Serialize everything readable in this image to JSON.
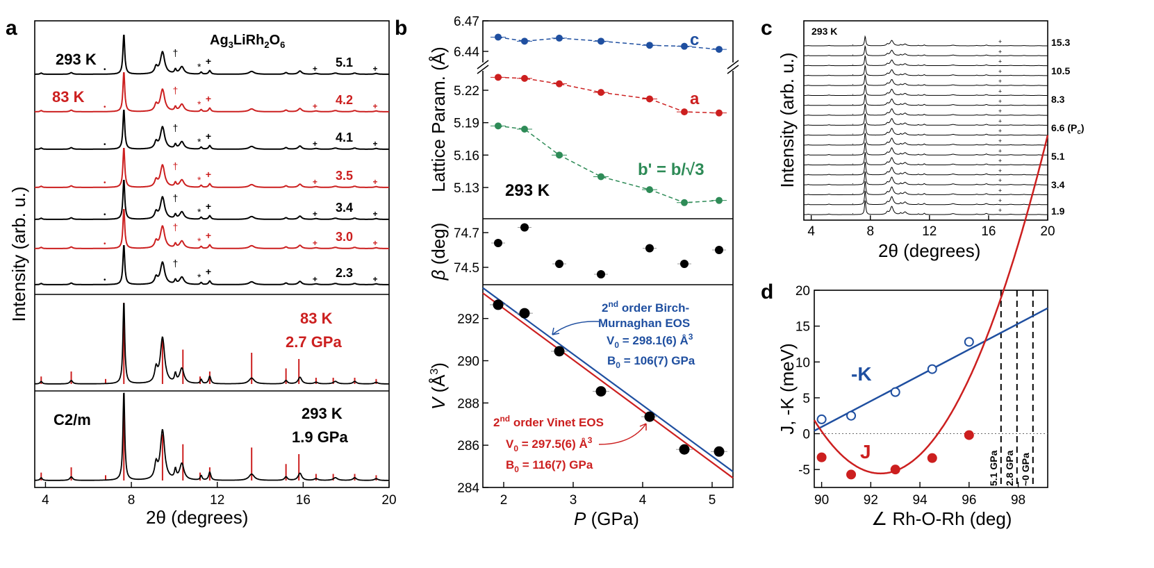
{
  "chart_data": [
    {
      "id": "a",
      "type": "line",
      "panel_label": "a",
      "xlabel": "2θ (degrees)",
      "ylabel": "Intensity (arb. u.)",
      "xlim": [
        3.5,
        20
      ],
      "xticks": [
        "4",
        "8",
        "12",
        "16",
        "20"
      ],
      "compound": "Ag3LiRh2O6",
      "compound_parts": {
        "p1": "Ag",
        "s1": "3",
        "p2": "LiRh",
        "s2": "2",
        "p3": "O",
        "s3": "6"
      },
      "temp_labels": [
        "293 K",
        "83 K"
      ],
      "series": [
        {
          "name": "5.1",
          "temperature": "293 K",
          "color": "#000000"
        },
        {
          "name": "4.2",
          "temperature": "83 K",
          "color": "#cc1f1f"
        },
        {
          "name": "4.1",
          "temperature": "293 K",
          "color": "#000000"
        },
        {
          "name": "3.5",
          "temperature": "83 K",
          "color": "#cc1f1f"
        },
        {
          "name": "3.4",
          "temperature": "293 K",
          "color": "#000000"
        },
        {
          "name": "3.0",
          "temperature": "83 K",
          "color": "#cc1f1f"
        },
        {
          "name": "2.3",
          "temperature": "293 K",
          "color": "#000000"
        }
      ],
      "peaks_2theta": [
        3.8,
        5.2,
        6.8,
        7.65,
        9.45,
        10.4,
        11.2,
        11.65,
        13.6,
        15.2,
        15.8,
        16.6,
        17.4,
        18.4,
        19.4
      ],
      "refinements": [
        {
          "temperature": "83 K",
          "pressure": "2.7 GPa",
          "color": "#cc1f1f"
        },
        {
          "temperature": "293 K",
          "pressure": "1.9 GPa",
          "space_group": "C2/m",
          "color": "#000000"
        }
      ],
      "markers": {
        "plus": "+",
        "star": "*",
        "dot": "•",
        "dagger": "†"
      }
    },
    {
      "id": "b-top",
      "type": "scatter",
      "panel_label": "b",
      "ylabel": "Lattice Param. (Å)",
      "annotation": "293 K",
      "xlim": [
        1.7,
        5.3
      ],
      "yticks_upper": [
        "6.44",
        "6.47"
      ],
      "yticks_lower": [
        "5.13",
        "5.16",
        "5.19",
        "5.22"
      ],
      "x": [
        1.92,
        2.3,
        2.8,
        3.4,
        4.1,
        4.6,
        5.1
      ],
      "series": [
        {
          "name": "c",
          "color": "#1f4fa0",
          "values": [
            6.454,
            6.45,
            6.453,
            6.45,
            6.446,
            6.445,
            6.442
          ]
        },
        {
          "name": "a",
          "color": "#cc1f1f",
          "values": [
            5.232,
            5.231,
            5.226,
            5.218,
            5.212,
            5.2,
            5.199
          ]
        },
        {
          "name": "b' = b/√3",
          "color": "#2e8b57",
          "values": [
            5.187,
            5.184,
            5.16,
            5.14,
            5.128,
            5.116,
            5.118
          ]
        }
      ]
    },
    {
      "id": "b-mid",
      "type": "scatter",
      "ylabel": "β (deg)",
      "ylabel_symbol": "β",
      "ylabel_unit": " (deg)",
      "ylim": [
        74.4,
        74.78
      ],
      "yticks": [
        "74.5",
        "74.7"
      ],
      "x": [
        1.92,
        2.3,
        2.8,
        3.4,
        4.1,
        4.6,
        5.1
      ],
      "values": [
        74.64,
        74.73,
        74.52,
        74.46,
        74.61,
        74.52,
        74.6
      ]
    },
    {
      "id": "b-bottom",
      "type": "scatter",
      "xlabel": "P (GPa)",
      "xlabel_symbol": "P",
      "xlabel_unit": " (GPa)",
      "ylabel": "V (Å3)",
      "ylabel_symbol": "V",
      "ylabel_unit": " (Å",
      "ylabel_sup": "3",
      "ylabel_close": ")",
      "xlim": [
        1.7,
        5.3
      ],
      "ylim": [
        284,
        293.6
      ],
      "xticks": [
        "2",
        "3",
        "4",
        "5"
      ],
      "yticks": [
        "284",
        "286",
        "288",
        "290",
        "292"
      ],
      "x": [
        1.92,
        2.3,
        2.8,
        3.4,
        4.1,
        4.6,
        5.1
      ],
      "values": [
        292.65,
        292.25,
        290.45,
        288.55,
        287.35,
        285.8,
        285.7
      ],
      "fits": [
        {
          "name": "2nd order Birch-Murnaghan EOS",
          "color": "#1f4fa0",
          "line1": "2",
          "line1_sup": "nd",
          "line1_rest": " order Birch-",
          "line2": "Murnaghan EOS",
          "v0": "V0 = 298.1(6) Å3",
          "b0": "B0 = 106(7) GPa",
          "v0_value": "298.1(6)",
          "b0_value": "106(7)",
          "v0_unit": "Å",
          "unit_sup": "3",
          "v0_sub": "0",
          "b0_unit": "GPa",
          "endpoints": [
            [
              1.7,
              293.45
            ],
            [
              5.3,
              284.75
            ]
          ]
        },
        {
          "name": "2nd order Vinet EOS",
          "color": "#cc1f1f",
          "line1": "2",
          "line1_sup": "nd",
          "line1_rest": " order Vinet EOS",
          "v0": "V0 = 297.5(6) Å3",
          "b0": "B0 = 116(7) GPa",
          "v0_value": "297.5(6)",
          "b0_value": "116(7)",
          "v0_unit": "Å",
          "unit_sup": "3",
          "v0_sub": "0",
          "b0_unit": "GPa",
          "endpoints": [
            [
              1.7,
              293.2
            ],
            [
              5.3,
              284.45
            ]
          ]
        }
      ]
    },
    {
      "id": "c",
      "type": "line",
      "panel_label": "c",
      "xlabel": "2θ (degrees)",
      "ylabel": "Intensity (arb. u.)",
      "annotation": "293 K",
      "xlim": [
        3.5,
        20
      ],
      "xticks": [
        "4",
        "8",
        "12",
        "16",
        "20"
      ],
      "pressure_labels": [
        "15.3",
        "10.5",
        "8.3",
        "6.6 (Pc)",
        "5.1",
        "3.4",
        "1.9"
      ],
      "pc_label": {
        "base": "6.6 (P",
        "sub": "c",
        "close": ")"
      },
      "trace_count": 18
    },
    {
      "id": "d",
      "type": "scatter",
      "panel_label": "d",
      "xlabel": "∠ Rh-O-Rh (deg)",
      "ylabel": "J, -K (meV)",
      "xlim": [
        89.7,
        99.2
      ],
      "ylim": [
        -7.5,
        20
      ],
      "xticks": [
        "90",
        "92",
        "94",
        "96",
        "98"
      ],
      "yticks": [
        "-5",
        "0",
        "5",
        "10",
        "15",
        "20"
      ],
      "series": [
        {
          "name": "-K",
          "color": "#1f4fa0",
          "marker": "open-circle",
          "x": [
            90.0,
            91.2,
            93.0,
            94.5,
            96.0
          ],
          "values": [
            2.0,
            2.5,
            5.8,
            9.0,
            12.8
          ]
        },
        {
          "name": "J",
          "color": "#cc1f1f",
          "marker": "filled-circle",
          "x": [
            90.0,
            91.2,
            93.0,
            94.5,
            96.0
          ],
          "values": [
            -3.3,
            -5.7,
            -5.0,
            -3.4,
            -0.2
          ]
        }
      ],
      "vlines": [
        {
          "x": 97.3,
          "label": "5.1 GPa"
        },
        {
          "x": 97.95,
          "label": "2.8 GPa"
        },
        {
          "x": 98.6,
          "label": "~0 GPa"
        }
      ]
    }
  ]
}
